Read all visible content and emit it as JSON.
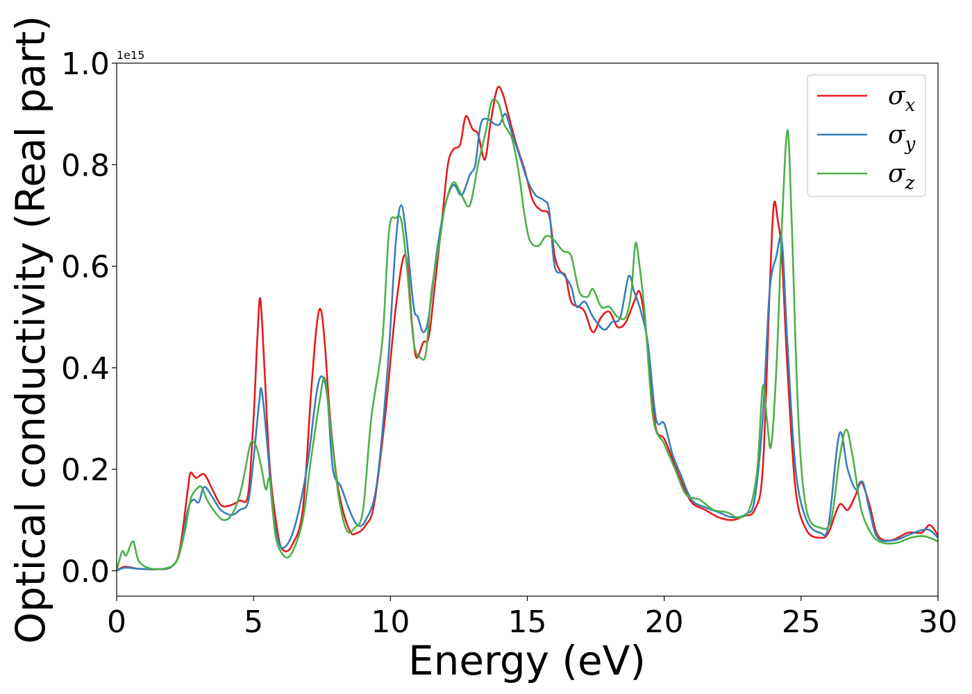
{
  "chart_data": {
    "type": "line",
    "xlabel": "Energy (eV)",
    "ylabel": "Optical conductivity (Real part)",
    "y_offset_text": "1e15",
    "xlim": [
      0,
      30
    ],
    "ylim": [
      -0.05,
      1.0
    ],
    "x_ticks": [
      "0",
      "5",
      "10",
      "15",
      "20",
      "25",
      "30"
    ],
    "y_ticks": [
      "0.0",
      "0.2",
      "0.4",
      "0.6",
      "0.8",
      "1.0"
    ],
    "legend_position": "top-right",
    "grid": false,
    "series": [
      {
        "name": "σx",
        "legend_symbol": "σ",
        "legend_sub": "x",
        "color": "#e41a1c",
        "points": [
          [
            0,
            0.0
          ],
          [
            0.3,
            0.008
          ],
          [
            0.8,
            0.004
          ],
          [
            1.5,
            0.003
          ],
          [
            2.0,
            0.008
          ],
          [
            2.3,
            0.04
          ],
          [
            2.6,
            0.16
          ],
          [
            2.7,
            0.193
          ],
          [
            2.9,
            0.183
          ],
          [
            3.2,
            0.19
          ],
          [
            3.5,
            0.16
          ],
          [
            3.8,
            0.13
          ],
          [
            4.1,
            0.128
          ],
          [
            4.5,
            0.138
          ],
          [
            4.8,
            0.15
          ],
          [
            5.0,
            0.3
          ],
          [
            5.15,
            0.47
          ],
          [
            5.25,
            0.535
          ],
          [
            5.4,
            0.4
          ],
          [
            5.6,
            0.2
          ],
          [
            5.9,
            0.07
          ],
          [
            6.1,
            0.04
          ],
          [
            6.4,
            0.05
          ],
          [
            6.8,
            0.12
          ],
          [
            7.1,
            0.35
          ],
          [
            7.3,
            0.48
          ],
          [
            7.45,
            0.515
          ],
          [
            7.6,
            0.45
          ],
          [
            7.8,
            0.3
          ],
          [
            8.1,
            0.16
          ],
          [
            8.5,
            0.08
          ],
          [
            8.8,
            0.075
          ],
          [
            9.1,
            0.09
          ],
          [
            9.4,
            0.13
          ],
          [
            9.8,
            0.3
          ],
          [
            10.2,
            0.52
          ],
          [
            10.55,
            0.622
          ],
          [
            10.8,
            0.48
          ],
          [
            10.95,
            0.42
          ],
          [
            11.2,
            0.45
          ],
          [
            11.4,
            0.46
          ],
          [
            11.6,
            0.55
          ],
          [
            11.9,
            0.7
          ],
          [
            12.1,
            0.8
          ],
          [
            12.3,
            0.83
          ],
          [
            12.55,
            0.84
          ],
          [
            12.75,
            0.895
          ],
          [
            13.0,
            0.87
          ],
          [
            13.2,
            0.86
          ],
          [
            13.45,
            0.81
          ],
          [
            13.65,
            0.88
          ],
          [
            13.9,
            0.95
          ],
          [
            14.1,
            0.94
          ],
          [
            14.3,
            0.9
          ],
          [
            14.6,
            0.84
          ],
          [
            14.9,
            0.79
          ],
          [
            15.2,
            0.73
          ],
          [
            15.5,
            0.71
          ],
          [
            15.8,
            0.7
          ],
          [
            16.0,
            0.62
          ],
          [
            16.2,
            0.59
          ],
          [
            16.4,
            0.58
          ],
          [
            16.6,
            0.53
          ],
          [
            16.9,
            0.52
          ],
          [
            17.1,
            0.51
          ],
          [
            17.4,
            0.47
          ],
          [
            17.7,
            0.5
          ],
          [
            18.0,
            0.51
          ],
          [
            18.3,
            0.48
          ],
          [
            18.6,
            0.49
          ],
          [
            18.9,
            0.53
          ],
          [
            19.1,
            0.55
          ],
          [
            19.3,
            0.49
          ],
          [
            19.5,
            0.38
          ],
          [
            19.7,
            0.28
          ],
          [
            20.0,
            0.26
          ],
          [
            20.3,
            0.22
          ],
          [
            20.6,
            0.18
          ],
          [
            21.0,
            0.135
          ],
          [
            21.5,
            0.12
          ],
          [
            22.0,
            0.105
          ],
          [
            22.5,
            0.1
          ],
          [
            22.9,
            0.108
          ],
          [
            23.3,
            0.12
          ],
          [
            23.6,
            0.2
          ],
          [
            23.85,
            0.55
          ],
          [
            24.0,
            0.72
          ],
          [
            24.15,
            0.69
          ],
          [
            24.3,
            0.62
          ],
          [
            24.5,
            0.4
          ],
          [
            24.8,
            0.16
          ],
          [
            25.2,
            0.08
          ],
          [
            25.7,
            0.065
          ],
          [
            26.0,
            0.075
          ],
          [
            26.4,
            0.13
          ],
          [
            26.7,
            0.12
          ],
          [
            27.0,
            0.15
          ],
          [
            27.2,
            0.175
          ],
          [
            27.5,
            0.13
          ],
          [
            27.8,
            0.07
          ],
          [
            28.3,
            0.06
          ],
          [
            28.9,
            0.075
          ],
          [
            29.4,
            0.075
          ],
          [
            29.7,
            0.09
          ],
          [
            30.0,
            0.07
          ]
        ]
      },
      {
        "name": "σy",
        "legend_symbol": "σ",
        "legend_sub": "y",
        "color": "#377eb8",
        "points": [
          [
            0,
            0.0
          ],
          [
            0.3,
            0.006
          ],
          [
            0.8,
            0.004
          ],
          [
            1.5,
            0.003
          ],
          [
            2.0,
            0.008
          ],
          [
            2.3,
            0.035
          ],
          [
            2.6,
            0.12
          ],
          [
            2.8,
            0.14
          ],
          [
            3.0,
            0.135
          ],
          [
            3.2,
            0.165
          ],
          [
            3.5,
            0.145
          ],
          [
            3.8,
            0.12
          ],
          [
            4.2,
            0.11
          ],
          [
            4.5,
            0.12
          ],
          [
            4.8,
            0.135
          ],
          [
            5.0,
            0.22
          ],
          [
            5.2,
            0.33
          ],
          [
            5.3,
            0.355
          ],
          [
            5.5,
            0.25
          ],
          [
            5.7,
            0.12
          ],
          [
            5.9,
            0.06
          ],
          [
            6.1,
            0.045
          ],
          [
            6.4,
            0.07
          ],
          [
            6.7,
            0.13
          ],
          [
            7.0,
            0.22
          ],
          [
            7.3,
            0.35
          ],
          [
            7.5,
            0.383
          ],
          [
            7.7,
            0.34
          ],
          [
            7.9,
            0.2
          ],
          [
            8.2,
            0.165
          ],
          [
            8.5,
            0.12
          ],
          [
            8.8,
            0.09
          ],
          [
            9.1,
            0.1
          ],
          [
            9.5,
            0.17
          ],
          [
            9.9,
            0.4
          ],
          [
            10.2,
            0.65
          ],
          [
            10.4,
            0.72
          ],
          [
            10.6,
            0.65
          ],
          [
            10.85,
            0.52
          ],
          [
            11.0,
            0.5
          ],
          [
            11.2,
            0.47
          ],
          [
            11.4,
            0.5
          ],
          [
            11.7,
            0.63
          ],
          [
            12.0,
            0.72
          ],
          [
            12.3,
            0.76
          ],
          [
            12.6,
            0.74
          ],
          [
            12.9,
            0.78
          ],
          [
            13.1,
            0.8
          ],
          [
            13.3,
            0.88
          ],
          [
            13.55,
            0.89
          ],
          [
            13.8,
            0.88
          ],
          [
            14.0,
            0.88
          ],
          [
            14.2,
            0.9
          ],
          [
            14.45,
            0.86
          ],
          [
            14.7,
            0.82
          ],
          [
            15.0,
            0.77
          ],
          [
            15.3,
            0.74
          ],
          [
            15.6,
            0.73
          ],
          [
            15.8,
            0.71
          ],
          [
            16.0,
            0.6
          ],
          [
            16.3,
            0.585
          ],
          [
            16.6,
            0.56
          ],
          [
            16.8,
            0.52
          ],
          [
            17.1,
            0.53
          ],
          [
            17.4,
            0.5
          ],
          [
            17.8,
            0.475
          ],
          [
            18.1,
            0.49
          ],
          [
            18.4,
            0.5
          ],
          [
            18.7,
            0.58
          ],
          [
            18.9,
            0.55
          ],
          [
            19.1,
            0.52
          ],
          [
            19.4,
            0.45
          ],
          [
            19.7,
            0.3
          ],
          [
            20.0,
            0.29
          ],
          [
            20.3,
            0.23
          ],
          [
            20.6,
            0.19
          ],
          [
            21.0,
            0.14
          ],
          [
            21.5,
            0.125
          ],
          [
            22.0,
            0.115
          ],
          [
            22.5,
            0.105
          ],
          [
            23.0,
            0.112
          ],
          [
            23.3,
            0.14
          ],
          [
            23.6,
            0.3
          ],
          [
            23.85,
            0.55
          ],
          [
            24.1,
            0.62
          ],
          [
            24.3,
            0.65
          ],
          [
            24.5,
            0.45
          ],
          [
            24.8,
            0.2
          ],
          [
            25.2,
            0.1
          ],
          [
            25.7,
            0.075
          ],
          [
            26.0,
            0.09
          ],
          [
            26.4,
            0.27
          ],
          [
            26.7,
            0.2
          ],
          [
            27.0,
            0.16
          ],
          [
            27.25,
            0.175
          ],
          [
            27.5,
            0.12
          ],
          [
            27.8,
            0.065
          ],
          [
            28.4,
            0.06
          ],
          [
            28.9,
            0.07
          ],
          [
            29.4,
            0.08
          ],
          [
            29.7,
            0.08
          ],
          [
            30.0,
            0.065
          ]
        ]
      },
      {
        "name": "σz",
        "legend_symbol": "σ",
        "legend_sub": "z",
        "color": "#4daf4a",
        "points": [
          [
            0,
            0.0
          ],
          [
            0.2,
            0.038
          ],
          [
            0.35,
            0.03
          ],
          [
            0.6,
            0.058
          ],
          [
            0.8,
            0.02
          ],
          [
            1.2,
            0.005
          ],
          [
            1.8,
            0.005
          ],
          [
            2.2,
            0.02
          ],
          [
            2.5,
            0.08
          ],
          [
            2.7,
            0.14
          ],
          [
            2.9,
            0.16
          ],
          [
            3.1,
            0.165
          ],
          [
            3.3,
            0.14
          ],
          [
            3.6,
            0.115
          ],
          [
            3.9,
            0.1
          ],
          [
            4.2,
            0.11
          ],
          [
            4.5,
            0.15
          ],
          [
            4.7,
            0.2
          ],
          [
            4.9,
            0.252
          ],
          [
            5.1,
            0.245
          ],
          [
            5.3,
            0.2
          ],
          [
            5.45,
            0.16
          ],
          [
            5.6,
            0.18
          ],
          [
            5.8,
            0.07
          ],
          [
            6.1,
            0.03
          ],
          [
            6.4,
            0.035
          ],
          [
            6.8,
            0.1
          ],
          [
            7.1,
            0.22
          ],
          [
            7.4,
            0.33
          ],
          [
            7.6,
            0.38
          ],
          [
            7.8,
            0.29
          ],
          [
            8.1,
            0.15
          ],
          [
            8.4,
            0.08
          ],
          [
            8.7,
            0.085
          ],
          [
            9.0,
            0.12
          ],
          [
            9.3,
            0.3
          ],
          [
            9.7,
            0.45
          ],
          [
            9.95,
            0.67
          ],
          [
            10.2,
            0.695
          ],
          [
            10.4,
            0.69
          ],
          [
            10.6,
            0.6
          ],
          [
            10.85,
            0.45
          ],
          [
            11.1,
            0.42
          ],
          [
            11.3,
            0.43
          ],
          [
            11.5,
            0.55
          ],
          [
            11.8,
            0.65
          ],
          [
            12.0,
            0.72
          ],
          [
            12.3,
            0.765
          ],
          [
            12.6,
            0.74
          ],
          [
            12.9,
            0.72
          ],
          [
            13.2,
            0.8
          ],
          [
            13.5,
            0.87
          ],
          [
            13.7,
            0.925
          ],
          [
            13.95,
            0.92
          ],
          [
            14.15,
            0.88
          ],
          [
            14.45,
            0.85
          ],
          [
            14.7,
            0.78
          ],
          [
            14.9,
            0.7
          ],
          [
            15.1,
            0.65
          ],
          [
            15.4,
            0.64
          ],
          [
            15.7,
            0.66
          ],
          [
            16.0,
            0.65
          ],
          [
            16.3,
            0.63
          ],
          [
            16.6,
            0.62
          ],
          [
            16.9,
            0.55
          ],
          [
            17.2,
            0.54
          ],
          [
            17.4,
            0.555
          ],
          [
            17.7,
            0.52
          ],
          [
            18.0,
            0.52
          ],
          [
            18.3,
            0.5
          ],
          [
            18.6,
            0.5
          ],
          [
            18.8,
            0.55
          ],
          [
            18.95,
            0.645
          ],
          [
            19.1,
            0.6
          ],
          [
            19.3,
            0.5
          ],
          [
            19.6,
            0.3
          ],
          [
            20.0,
            0.25
          ],
          [
            20.4,
            0.2
          ],
          [
            20.8,
            0.15
          ],
          [
            21.3,
            0.14
          ],
          [
            21.8,
            0.12
          ],
          [
            22.3,
            0.115
          ],
          [
            22.7,
            0.105
          ],
          [
            23.1,
            0.12
          ],
          [
            23.4,
            0.2
          ],
          [
            23.6,
            0.363
          ],
          [
            23.75,
            0.3
          ],
          [
            23.9,
            0.245
          ],
          [
            24.1,
            0.4
          ],
          [
            24.3,
            0.68
          ],
          [
            24.5,
            0.868
          ],
          [
            24.65,
            0.7
          ],
          [
            24.9,
            0.3
          ],
          [
            25.2,
            0.12
          ],
          [
            25.7,
            0.085
          ],
          [
            26.1,
            0.1
          ],
          [
            26.4,
            0.22
          ],
          [
            26.65,
            0.278
          ],
          [
            26.9,
            0.22
          ],
          [
            27.2,
            0.12
          ],
          [
            27.6,
            0.07
          ],
          [
            28.0,
            0.055
          ],
          [
            28.5,
            0.055
          ],
          [
            29.0,
            0.065
          ],
          [
            29.5,
            0.068
          ],
          [
            30.0,
            0.058
          ]
        ]
      }
    ]
  }
}
